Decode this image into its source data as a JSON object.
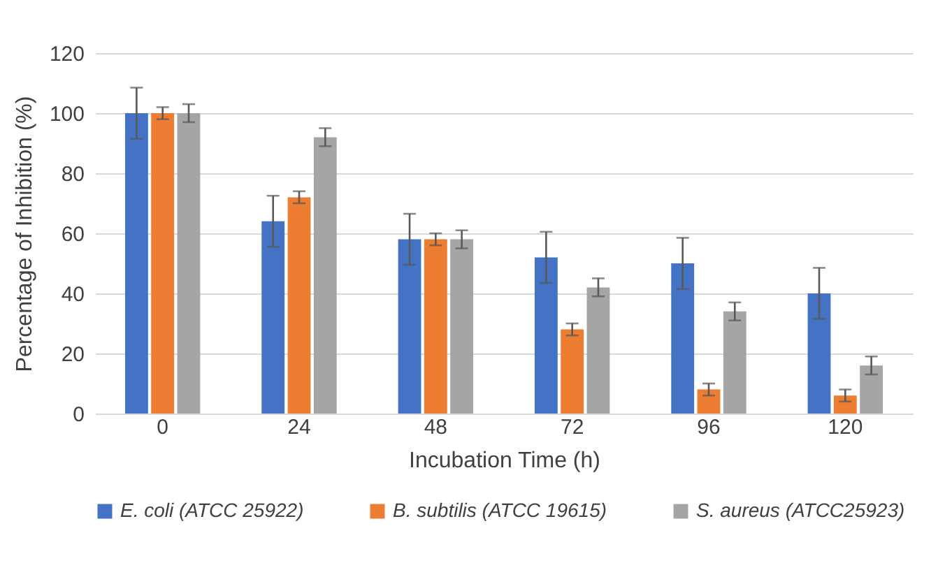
{
  "chart_data": {
    "type": "bar",
    "xlabel": "Incubation Time (h)",
    "ylabel": "Percentage of Inhibition (%)",
    "categories": [
      "0",
      "24",
      "48",
      "72",
      "96",
      "120"
    ],
    "series": [
      {
        "name": "E. coli (ATCC 25922)",
        "color": "#4472c4",
        "values": [
          100,
          64,
          58,
          52,
          50,
          40
        ],
        "errors": [
          8.5,
          8.5,
          8.5,
          8.5,
          8.5,
          8.5
        ]
      },
      {
        "name": "B. subtilis (ATCC 19615)",
        "color": "#ed7d31",
        "values": [
          100,
          72,
          58,
          28,
          8,
          6
        ],
        "errors": [
          2,
          2,
          2,
          2,
          2,
          2
        ]
      },
      {
        "name": "S. aureus (ATCC25923)",
        "color": "#a5a5a5",
        "values": [
          100,
          92,
          58,
          42,
          34,
          16
        ],
        "errors": [
          3,
          3,
          3,
          3,
          3,
          3
        ]
      }
    ],
    "ylim": [
      0,
      120
    ],
    "yticks": [
      0,
      20,
      40,
      60,
      80,
      100,
      120
    ],
    "grid": "y",
    "legend": "bottom"
  }
}
